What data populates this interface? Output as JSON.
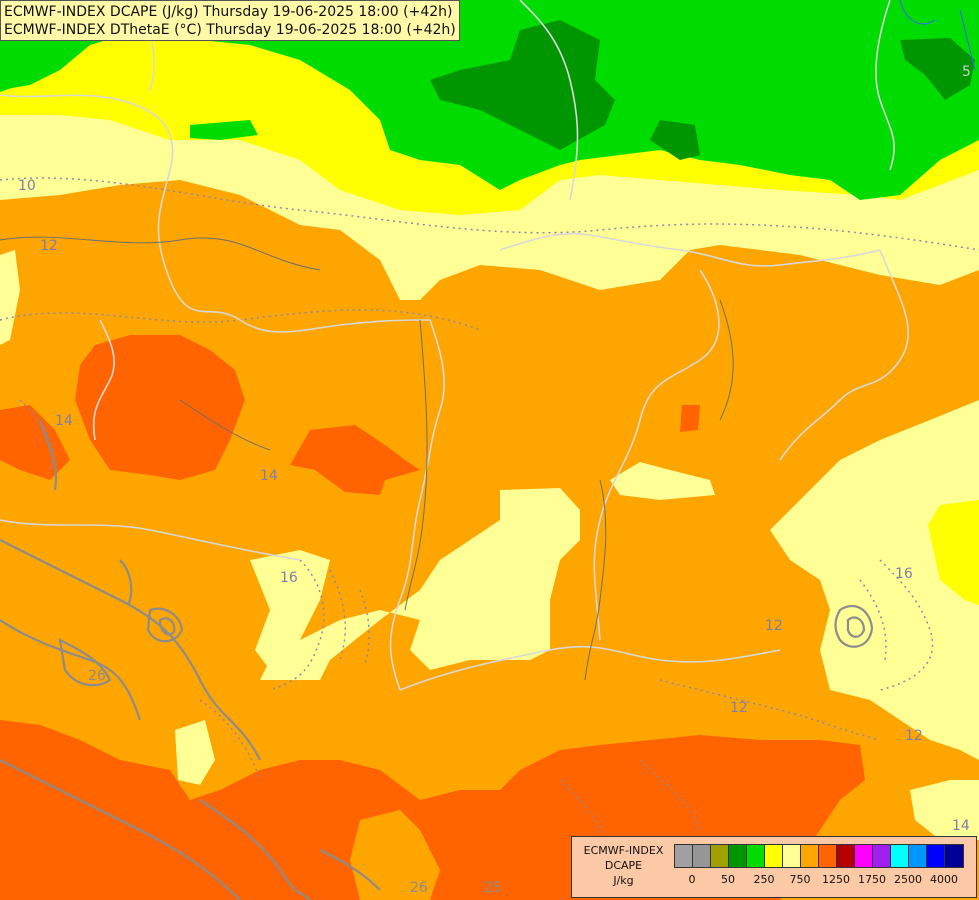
{
  "title": {
    "line1": "ECMWF-INDEX DCAPE (J/kg) Thursday 19-06-2025 18:00 (+42h)",
    "line2": "ECMWF-INDEX DThetaE (°C) Thursday 19-06-2025 18:00 (+42h)"
  },
  "legend": {
    "name": "ECMWF-INDEX",
    "variable": "DCAPE",
    "unit": "J/kg",
    "colors": [
      "#a0a0a0",
      "#969696",
      "#a0a000",
      "#009600",
      "#00dc00",
      "#ffff00",
      "#ffff96",
      "#ffa500",
      "#ff6400",
      "#b40000",
      "#ff00ff",
      "#a020f0",
      "#00ffff",
      "#0096ff",
      "#0000ff",
      "#000096"
    ],
    "ticks": [
      "0",
      "50",
      "250",
      "750",
      "1250",
      "1750",
      "2500",
      "4000"
    ]
  },
  "contour_labels": [
    "10",
    "12",
    "14",
    "16",
    "12",
    "12",
    "12",
    "14",
    "16",
    "5",
    "14",
    "26",
    "26",
    "25"
  ]
}
